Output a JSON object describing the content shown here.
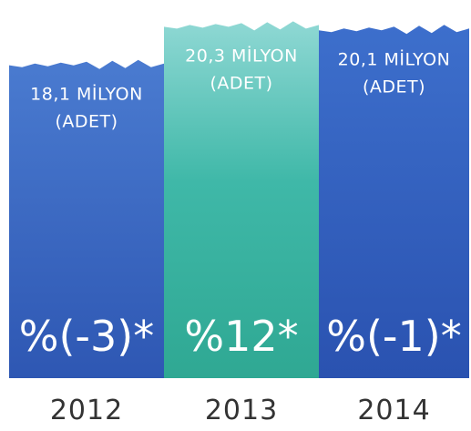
{
  "chart_data": {
    "type": "bar",
    "categories": [
      "2012",
      "2013",
      "2014"
    ],
    "values": [
      18.1,
      20.3,
      20.1
    ],
    "value_labels": [
      [
        "18,1 MİLYON",
        "(ADET)"
      ],
      [
        "20,3 MİLYON",
        "(ADET)"
      ],
      [
        "20,1 MİLYON",
        "(ADET)"
      ]
    ],
    "change_labels": [
      "%(-3)*",
      "%12*",
      "%(-1)*"
    ],
    "colors": [
      "#3a68c4",
      "#3fb8a8",
      "#2f5fc0"
    ],
    "ylim": [
      0,
      21
    ],
    "grid": false
  }
}
